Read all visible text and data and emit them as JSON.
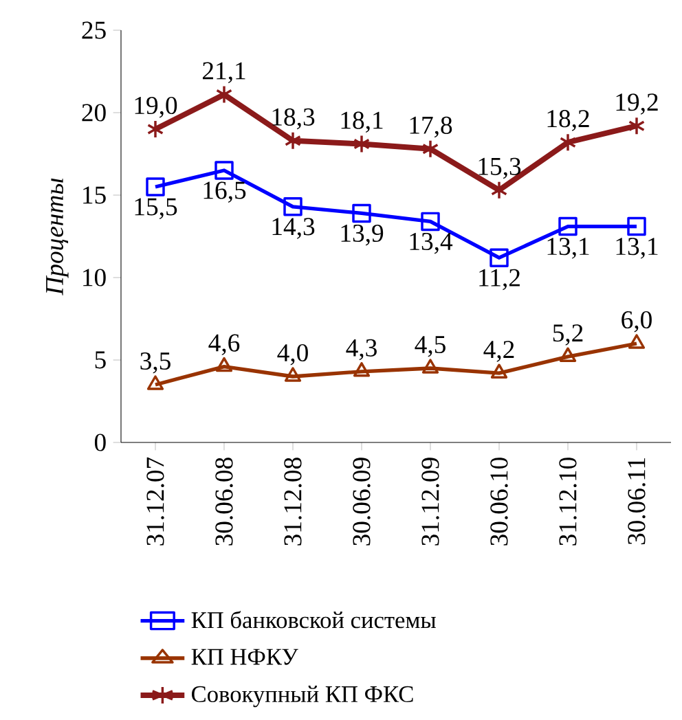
{
  "chart_data": {
    "type": "line",
    "ylabel": "Проценты",
    "categories": [
      "31.12.07",
      "30.06.08",
      "31.12.08",
      "30.06.09",
      "31.12.09",
      "30.06.10",
      "31.12.10",
      "30.06.11"
    ],
    "ylim": [
      0,
      25
    ],
    "yticks": [
      0,
      5,
      10,
      15,
      20,
      25
    ],
    "grid": false,
    "legend": "bottom",
    "line_style": "solid",
    "series": [
      {
        "name": "КП банковской системы",
        "color": "#0000ff",
        "marker": "square",
        "values": [
          15.5,
          16.5,
          14.3,
          13.9,
          13.4,
          11.2,
          13.1,
          13.1
        ],
        "value_labels": [
          "15,5",
          "16,5",
          "14,3",
          "13,9",
          "13,4",
          "11,2",
          "13,1",
          "13,1"
        ]
      },
      {
        "name": "КП НФКУ",
        "color": "#993300",
        "marker": "triangle",
        "values": [
          3.5,
          4.6,
          4.0,
          4.3,
          4.5,
          4.2,
          5.2,
          6.0
        ],
        "value_labels": [
          "3,5",
          "4,6",
          "4,0",
          "4,3",
          "4,5",
          "4,2",
          "5,2",
          "6,0"
        ]
      },
      {
        "name": "Совокупный КП ФКС",
        "color": "#8b1a1a",
        "marker": "cross",
        "values": [
          19.0,
          21.1,
          18.3,
          18.1,
          17.8,
          15.3,
          18.2,
          19.2
        ],
        "value_labels": [
          "19,0",
          "21,1",
          "18,3",
          "18,1",
          "17,8",
          "15,3",
          "18,2",
          "19,2"
        ]
      }
    ]
  }
}
